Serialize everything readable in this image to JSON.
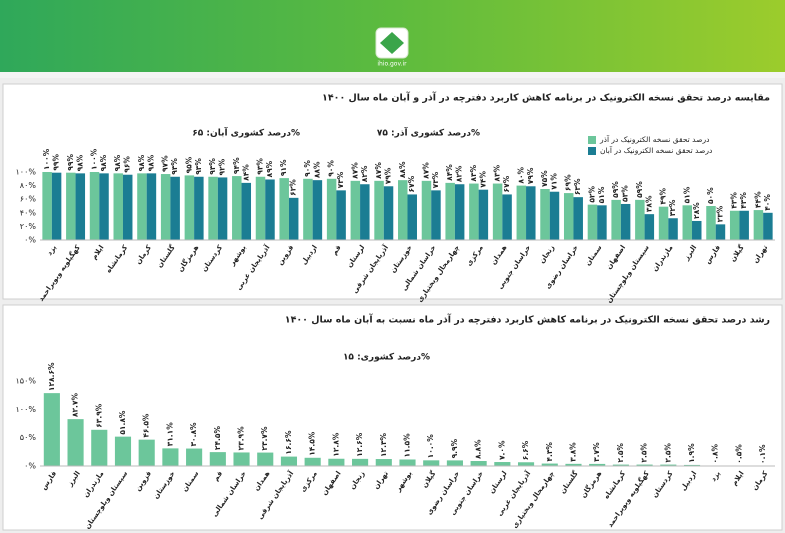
{
  "header": {
    "site": "ihio.gov.ir"
  },
  "chart_data": [
    {
      "type": "bar",
      "title": "مقایسه درصد تحقق نسخه الکترونیک در برنامه کاهش کاربرد دفترچه در آذر و آبان ماه سال ۱۴۰۰",
      "annotations": [
        "درصد کشوری آذر: ۷۵%",
        "درصد کشوری آبان: ۶۵%"
      ],
      "legend": "top-right",
      "grid": false,
      "ylim": [
        0,
        100
      ],
      "yticks": [
        {
          "value": 0,
          "label": "۰%"
        },
        {
          "value": 20,
          "label": "۲۰%"
        },
        {
          "value": 40,
          "label": "۴۰%"
        },
        {
          "value": 60,
          "label": "۶۰%"
        },
        {
          "value": 80,
          "label": "۸۰%"
        },
        {
          "value": 100,
          "label": "۱۰۰%"
        }
      ],
      "categories": [
        "یزد",
        "کهگیلویه وبویراحمد",
        "ایلام",
        "کرمانشاه",
        "کرمان",
        "گلستان",
        "هرمزگان",
        "کردستان",
        "بوشهر",
        "آذربایجان غربی",
        "قزوین",
        "اردبیل",
        "قم",
        "لرستان",
        "آذربایجان شرقی",
        "خوزستان",
        "خراسان شمالی",
        "چهارمحال وبختیاری",
        "مرکزی",
        "همدان",
        "خراسان جنوبی",
        "زنجان",
        "خراسان رضوی",
        "سمنان",
        "اصفهان",
        "سیستان وبلوچستان",
        "مازندران",
        "البرز",
        "فارس",
        "گیلان",
        "تهران"
      ],
      "series": [
        {
          "name": "درصد تحقق نسخه الکترونیک در آذر",
          "color": "#6cc69b",
          "values": [
            100,
            99,
            100,
            98,
            98,
            97,
            95,
            93,
            94,
            93,
            91,
            90,
            90,
            87,
            87,
            88,
            87,
            84,
            83,
            83,
            80,
            75,
            69,
            52,
            59,
            59,
            49,
            51,
            50,
            43,
            44
          ],
          "value_labels": [
            "۱۰۰%",
            "۹۹%",
            "۱۰۰%",
            "۹۸%",
            "۹۸%",
            "۹۷%",
            "۹۵%",
            "۹۳%",
            "۹۴%",
            "۹۳%",
            "۹۱%",
            "۹۰%",
            "۹۰%",
            "۸۷%",
            "۸۷%",
            "۸۸%",
            "۸۷%",
            "۸۴%",
            "۸۳%",
            "۸۳%",
            "۸۰%",
            "۷۵%",
            "۶۹%",
            "۵۲%",
            "۵۹%",
            "۵۹%",
            "۴۹%",
            "۵۱%",
            "۵۰%",
            "۴۳%",
            "۴۴%"
          ]
        },
        {
          "name": "درصد تحقق نسخه الکترونیک در آبان",
          "color": "#1b7d93",
          "values": [
            99,
            98,
            98,
            96,
            98,
            93,
            93,
            92,
            84,
            89,
            62,
            88,
            73,
            82,
            79,
            67,
            73,
            82,
            74,
            67,
            79,
            71,
            63,
            51,
            53,
            38,
            32,
            28,
            23,
            43,
            40
          ],
          "value_labels": [
            "۹۹%",
            "۹۸%",
            "۹۸%",
            "۹۶%",
            "۹۸%",
            "۹۳%",
            "۹۳%",
            "۹۲%",
            "۸۴%",
            "۸۹%",
            "۶۲%",
            "۸۸%",
            "۷۳%",
            "۸۲%",
            "۷۹%",
            "۶۷%",
            "۷۳%",
            "۸۲%",
            "۷۴%",
            "۶۷%",
            "۷۹%",
            "۷۱%",
            "۶۳%",
            "۵۱%",
            "۵۳%",
            "۳۸%",
            "۳۲%",
            "۲۸%",
            "۲۳%",
            "۴۳%",
            "۴۰%"
          ]
        }
      ]
    },
    {
      "type": "bar",
      "title": "رشد درصد تحقق نسخه الکترونیک در برنامه کاهش کاربرد دفترچه در آذر ماه نسبت به آبان ماه سال ۱۴۰۰",
      "annotations": [
        "درصد کشوری: ۱۵%"
      ],
      "grid": false,
      "ylim": [
        0,
        150
      ],
      "yticks": [
        {
          "value": 0,
          "label": "۰%"
        },
        {
          "value": 50,
          "label": "۵۰%"
        },
        {
          "value": 100,
          "label": "۱۰۰%"
        },
        {
          "value": 150,
          "label": "۱۵۰%"
        }
      ],
      "categories": [
        "فارس",
        "البرز",
        "مازندران",
        "سیستان وبلوچستان",
        "قزوین",
        "خوزستان",
        "سمنان",
        "قم",
        "خراسان شمالی",
        "همدان",
        "آذربایجان شرقی",
        "مرکزی",
        "اصفهان",
        "زنجان",
        "تهران",
        "بوشهر",
        "گیلان",
        "خراسان رضوی",
        "خراسان جنوبی",
        "لرستان",
        "آذربایجان غربی",
        "چهارمحال وبختیاری",
        "گلستان",
        "هرمزگان",
        "کرمانشاه",
        "کهگیلویه وبویراحمد",
        "کردستان",
        "اردبیل",
        "یزد",
        "ایلام",
        "کرمان"
      ],
      "color": "#6cc69b",
      "values": [
        128.6,
        82.7,
        63.9,
        51.8,
        46.5,
        31.1,
        30.8,
        24.5,
        23.9,
        23.7,
        16.6,
        14.5,
        12.8,
        12.6,
        12.3,
        11.5,
        10,
        9.9,
        8.8,
        7,
        6.6,
        4.3,
        3.8,
        3.7,
        2.5,
        2.5,
        2.5,
        1.9,
        0.8,
        0.5,
        0.1
      ],
      "value_labels": [
        "۱۲۸.۶%",
        "۸۲.۷%",
        "۶۳.۹%",
        "۵۱.۸%",
        "۴۶.۵%",
        "۳۱.۱%",
        "۳۰.۸%",
        "۲۴.۵%",
        "۲۳.۹%",
        "۲۳.۷%",
        "۱۶.۶%",
        "۱۴.۵%",
        "۱۲.۸%",
        "۱۲.۶%",
        "۱۲.۳%",
        "۱۱.۵%",
        "۱۰.۰%",
        "۹.۹%",
        "۸.۸%",
        "۷.۰%",
        "۶.۶%",
        "۴.۳%",
        "۳.۸%",
        "۳.۷%",
        "۲.۵%",
        "۲.۵%",
        "۲.۵%",
        "۱.۹%",
        "۰.۸%",
        "۰.۵%",
        "۰.۱%"
      ]
    }
  ]
}
